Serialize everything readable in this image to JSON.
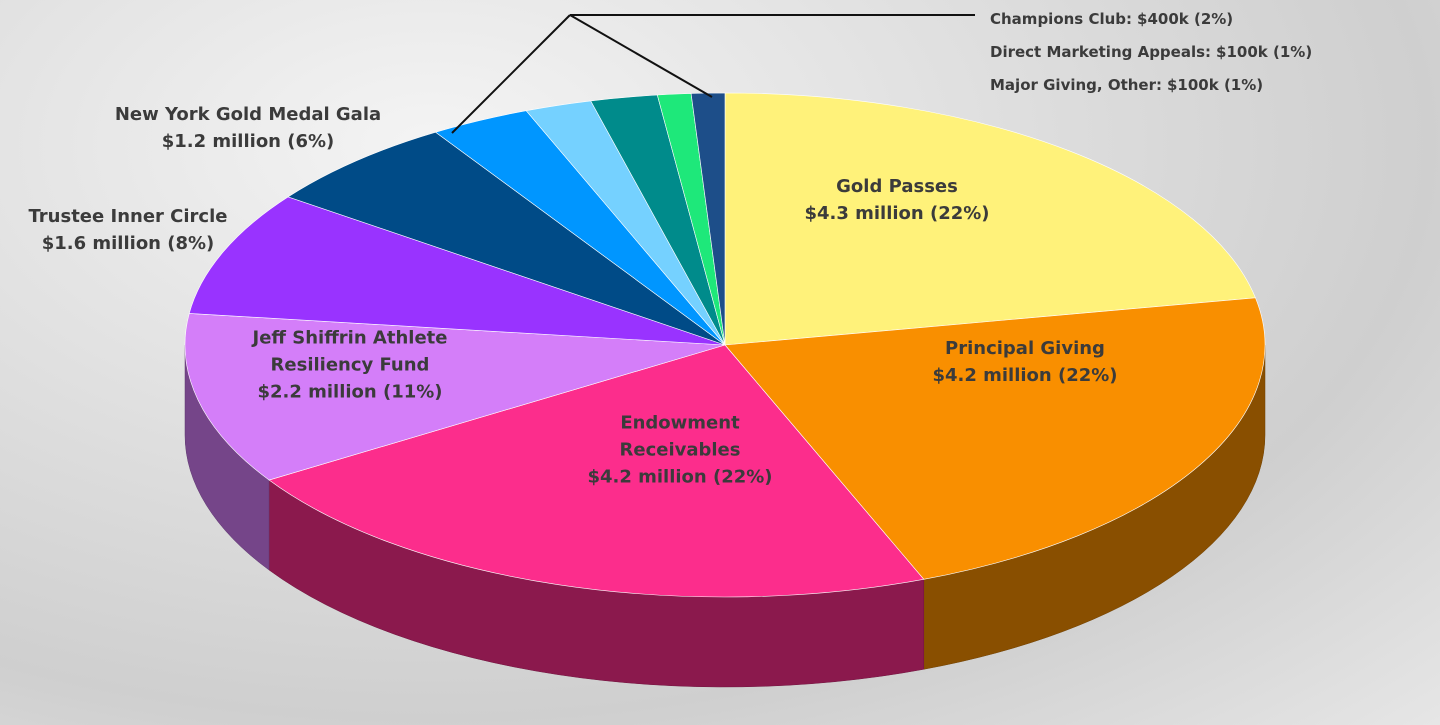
{
  "chart_data": {
    "type": "pie",
    "categories": [
      "Gold Passes",
      "Principal Giving",
      "Endowment Receivables",
      "Jeff Shiffrin Athlete Resiliency Fund",
      "Trustee Inner Circle",
      "New York Gold Medal Gala",
      null,
      null,
      "Champions Club:",
      "Direct Marketing Appeals:",
      "Major Giving, Other:"
    ],
    "values": [
      22,
      22,
      22,
      11,
      8,
      6,
      3,
      2,
      2,
      1,
      1
    ],
    "value_labels": [
      "$4.3 million (22%)",
      "$4.2 million (22%)",
      "$4.2 million (22%)",
      "$2.2 million (11%)",
      "$1.6 million (8%)",
      "$1.2 million (6%)",
      null,
      null,
      "$400k (2%)",
      "$100k (1%)",
      "$100k (1%)"
    ],
    "colors": [
      "#fff27a",
      "#f98f00",
      "#fc2d8c",
      "#d47ef9",
      "#9933ff",
      "#004b87",
      "#0096ff",
      "#75d1ff",
      "#008b8b",
      "#1ee87a",
      "#1d4e89"
    ]
  }
}
